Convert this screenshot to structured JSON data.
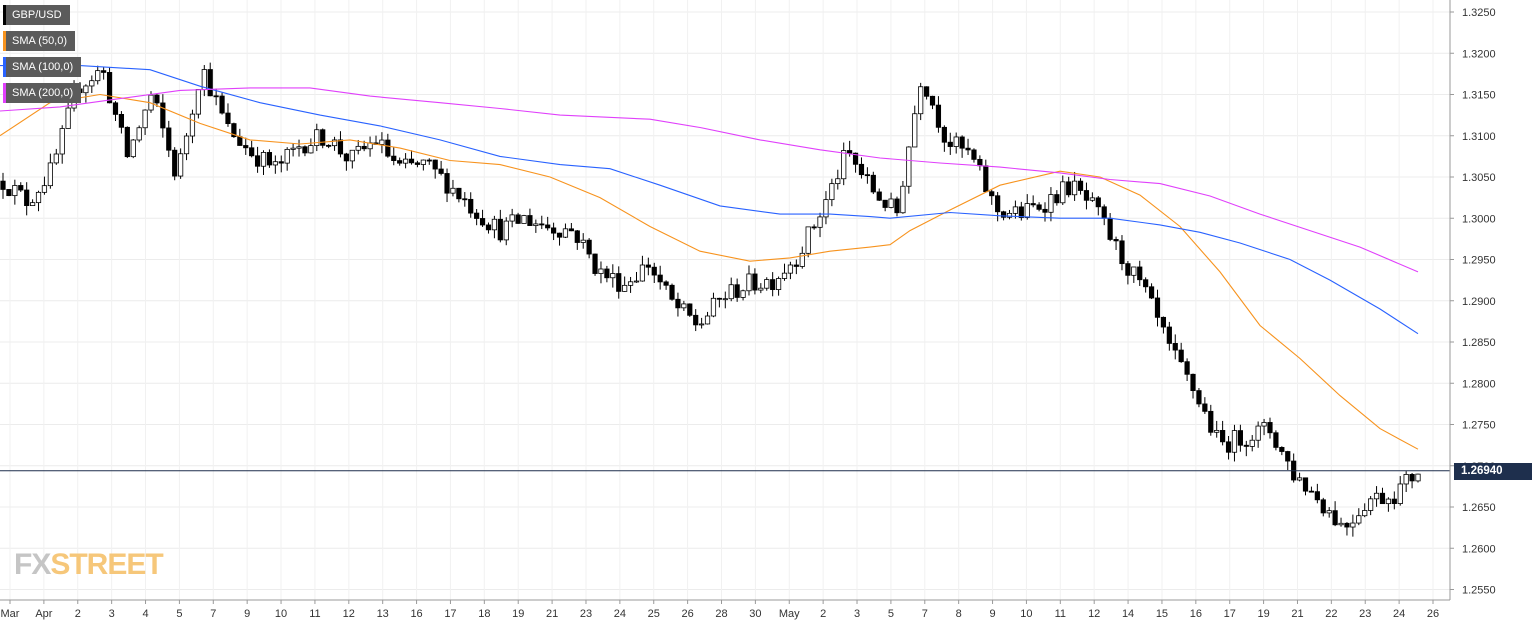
{
  "legend": [
    {
      "label": "GBP/USD",
      "color": "#000000"
    },
    {
      "label": "SMA (50,0)",
      "color": "#f7931e"
    },
    {
      "label": "SMA (100,0)",
      "color": "#2962ff"
    },
    {
      "label": "SMA (200,0)",
      "color": "#e040fb"
    }
  ],
  "current_price": "1.26940",
  "logo": {
    "fx": "FX",
    "street": "STREET"
  },
  "chart_data": {
    "type": "candlestick",
    "symbol": "GBP/USD",
    "ylim": [
      1.253,
      1.3265
    ],
    "y_ticks": [
      "1.3250",
      "1.3200",
      "1.3150",
      "1.3100",
      "1.3050",
      "1.3000",
      "1.2950",
      "1.2900",
      "1.2850",
      "1.2800",
      "1.2750",
      "1.2700",
      "1.2650",
      "1.2600",
      "1.2550"
    ],
    "x_ticks": [
      "Mar",
      "Apr",
      "2",
      "3",
      "4",
      "5",
      "7",
      "9",
      "10",
      "11",
      "12",
      "13",
      "16",
      "17",
      "18",
      "19",
      "21",
      "23",
      "24",
      "25",
      "26",
      "28",
      "30",
      "May",
      "2",
      "3",
      "5",
      "7",
      "8",
      "9",
      "10",
      "11",
      "12",
      "14",
      "15",
      "16",
      "17",
      "19",
      "21",
      "22",
      "23",
      "24",
      "26"
    ],
    "close_series": [
      1.3045,
      1.302,
      1.306,
      1.316,
      1.318,
      1.3075,
      1.315,
      1.305,
      1.3185,
      1.311,
      1.308,
      1.306,
      1.309,
      1.31,
      1.307,
      1.3095,
      1.306,
      1.3065,
      1.304,
      1.301,
      1.2985,
      1.3,
      1.299,
      1.2985,
      1.2935,
      1.292,
      1.2945,
      1.2895,
      1.287,
      1.2905,
      1.292,
      1.2925,
      1.2955,
      1.301,
      1.308,
      1.3035,
      1.3005,
      1.3175,
      1.3095,
      1.3075,
      1.301,
      1.3005,
      1.302,
      1.304,
      1.301,
      1.2955,
      1.291,
      1.284,
      1.279,
      1.2725,
      1.2735,
      1.2745,
      1.269,
      1.266,
      1.2625,
      1.266,
      1.2665,
      1.2694
    ],
    "series": [
      {
        "name": "SMA (50,0)",
        "values": [
          [
            0,
            1.31
          ],
          [
            50,
            1.314
          ],
          [
            100,
            1.315
          ],
          [
            150,
            1.314
          ],
          [
            200,
            1.3115
          ],
          [
            250,
            1.3095
          ],
          [
            300,
            1.309
          ],
          [
            350,
            1.3095
          ],
          [
            400,
            1.3085
          ],
          [
            450,
            1.307
          ],
          [
            500,
            1.3065
          ],
          [
            550,
            1.305
          ],
          [
            600,
            1.3025
          ],
          [
            650,
            1.299
          ],
          [
            700,
            1.296
          ],
          [
            750,
            1.2948
          ],
          [
            790,
            1.2952
          ],
          [
            830,
            1.296
          ],
          [
            870,
            1.2965
          ],
          [
            890,
            1.2968
          ],
          [
            910,
            1.2985
          ],
          [
            950,
            1.301
          ],
          [
            1000,
            1.304
          ],
          [
            1060,
            1.3057
          ],
          [
            1100,
            1.305
          ],
          [
            1140,
            1.3028
          ],
          [
            1180,
            1.299
          ],
          [
            1220,
            1.2935
          ],
          [
            1260,
            1.287
          ],
          [
            1300,
            1.283
          ],
          [
            1340,
            1.2785
          ],
          [
            1380,
            1.2745
          ],
          [
            1418,
            1.272
          ]
        ]
      },
      {
        "name": "SMA (100,0)",
        "values": [
          [
            0,
            1.3185
          ],
          [
            80,
            1.3185
          ],
          [
            150,
            1.318
          ],
          [
            200,
            1.316
          ],
          [
            260,
            1.314
          ],
          [
            320,
            1.3125
          ],
          [
            380,
            1.3112
          ],
          [
            440,
            1.3095
          ],
          [
            500,
            1.3075
          ],
          [
            560,
            1.3065
          ],
          [
            610,
            1.306
          ],
          [
            660,
            1.304
          ],
          [
            720,
            1.3015
          ],
          [
            780,
            1.3005
          ],
          [
            830,
            1.3005
          ],
          [
            870,
            1.3002
          ],
          [
            890,
            1.3
          ],
          [
            950,
            1.3007
          ],
          [
            1000,
            1.3003
          ],
          [
            1060,
            1.3
          ],
          [
            1110,
            1.3
          ],
          [
            1160,
            1.2992
          ],
          [
            1200,
            1.2983
          ],
          [
            1240,
            1.297
          ],
          [
            1290,
            1.295
          ],
          [
            1330,
            1.2925
          ],
          [
            1380,
            1.289
          ],
          [
            1418,
            1.286
          ]
        ]
      },
      {
        "name": "SMA (200,0)",
        "values": [
          [
            0,
            1.313
          ],
          [
            60,
            1.3135
          ],
          [
            120,
            1.3145
          ],
          [
            180,
            1.3155
          ],
          [
            250,
            1.3158
          ],
          [
            310,
            1.3158
          ],
          [
            370,
            1.3148
          ],
          [
            440,
            1.314
          ],
          [
            500,
            1.3133
          ],
          [
            560,
            1.3125
          ],
          [
            650,
            1.312
          ],
          [
            700,
            1.311
          ],
          [
            760,
            1.3095
          ],
          [
            820,
            1.3083
          ],
          [
            880,
            1.3073
          ],
          [
            940,
            1.3067
          ],
          [
            1000,
            1.3062
          ],
          [
            1060,
            1.3055
          ],
          [
            1110,
            1.3047
          ],
          [
            1160,
            1.3042
          ],
          [
            1210,
            1.3027
          ],
          [
            1260,
            1.3005
          ],
          [
            1310,
            1.2985
          ],
          [
            1360,
            1.2965
          ],
          [
            1418,
            1.2935
          ]
        ]
      }
    ]
  }
}
